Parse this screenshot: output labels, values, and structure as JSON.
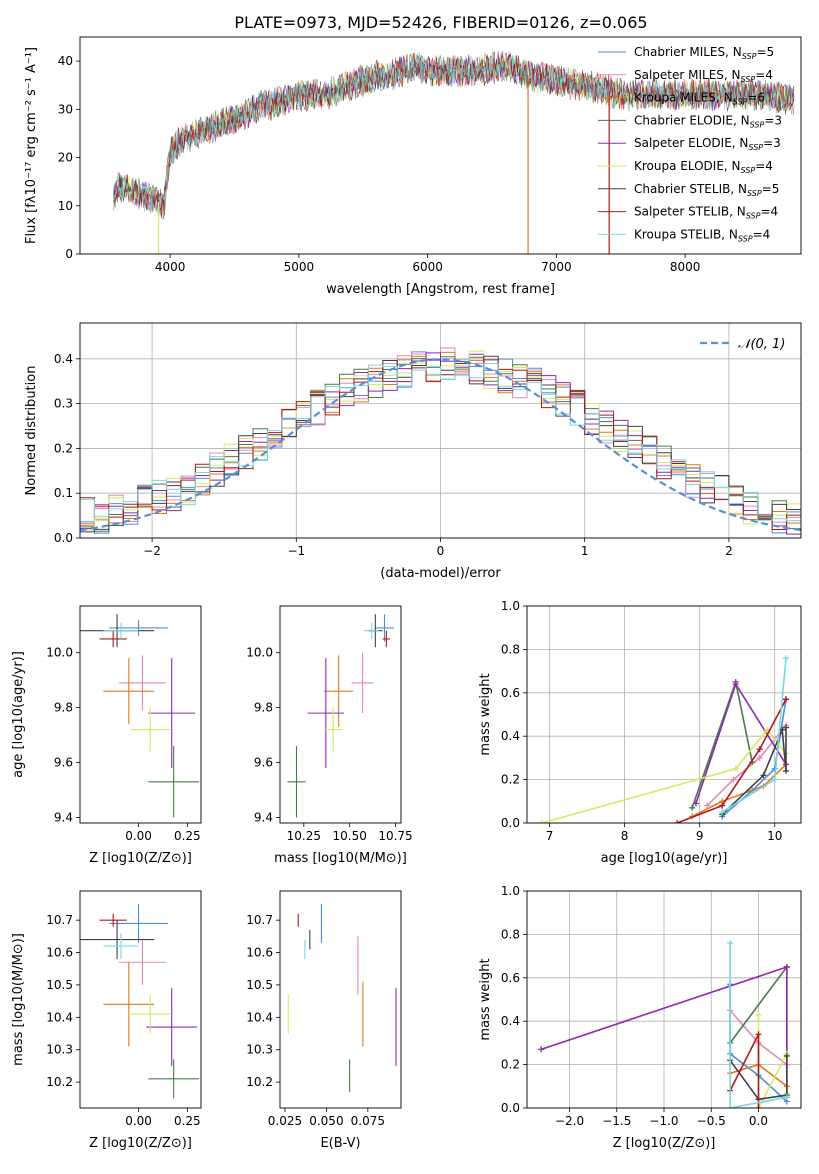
{
  "page_title": "PLATE=0973, MJD=52426, FIBERID=0126, z=0.065",
  "colors": {
    "Chabrier MILES": "#4e8fd8",
    "Salpeter MILES": "#e888b8",
    "Kroupa MILES": "#e07a20",
    "Chabrier ELODIE": "#4a7a4a",
    "Salpeter ELODIE": "#9028b0",
    "Kroupa ELODIE": "#d8e860",
    "Chabrier STELIB": "#404048",
    "Salpeter STELIB": "#b01818",
    "Kroupa STELIB": "#78d8e0",
    "normal_curve": "#5a8fd8"
  },
  "chart_data": [
    {
      "id": "spectrum",
      "type": "line",
      "xlabel": "wavelength [Angstrom, rest frame]",
      "ylabel": "Flux [fλ10⁻¹⁷ erg cm⁻² s⁻¹ A⁻¹]",
      "xlim": [
        3300,
        8900
      ],
      "ylim": [
        0,
        45
      ],
      "xticks": [
        "4000",
        "5000",
        "6000",
        "7000",
        "8000"
      ],
      "yticks": [
        "0",
        "10",
        "20",
        "30",
        "40"
      ],
      "legend_position": "top-right",
      "legend": [
        {
          "label": "Chabrier MILES, N",
          "sub": "SSP",
          "suffix": "=5",
          "color": "#4e8fd8"
        },
        {
          "label": "Salpeter MILES, N",
          "sub": "SSP",
          "suffix": "=4",
          "color": "#e888b8"
        },
        {
          "label": "Kroupa MILES, N",
          "sub": "SSP",
          "suffix": "=6",
          "color": "#e07a20"
        },
        {
          "label": "Chabrier ELODIE, N",
          "sub": "SSP",
          "suffix": "=3",
          "color": "#4a7a4a"
        },
        {
          "label": "Salpeter ELODIE, N",
          "sub": "SSP",
          "suffix": "=3",
          "color": "#9028b0"
        },
        {
          "label": "Kroupa ELODIE, N",
          "sub": "SSP",
          "suffix": "=4",
          "color": "#d8e860"
        },
        {
          "label": "Chabrier STELIB, N",
          "sub": "SSP",
          "suffix": "=5",
          "color": "#404048"
        },
        {
          "label": "Salpeter STELIB, N",
          "sub": "SSP",
          "suffix": "=4",
          "color": "#b01818"
        },
        {
          "label": "Kroupa STELIB, N",
          "sub": "SSP",
          "suffix": "=4",
          "color": "#78d8e0"
        }
      ],
      "continuum": {
        "x": [
          3550,
          3600,
          3700,
          3800,
          3900,
          3950,
          4000,
          4100,
          4200,
          4300,
          4400,
          4500,
          4600,
          4700,
          4800,
          4900,
          5000,
          5100,
          5200,
          5300,
          5400,
          5500,
          5600,
          5700,
          5800,
          5900,
          6000,
          6200,
          6400,
          6600,
          6800,
          7000,
          7200,
          7400,
          7500,
          7600,
          7700,
          7800,
          7900,
          8000,
          8200,
          8400,
          8600,
          8800
        ],
        "y": [
          10,
          14,
          13,
          12,
          11,
          10,
          21,
          24,
          25,
          26,
          27,
          28,
          29,
          31,
          31,
          32,
          33,
          33,
          33,
          34,
          35,
          36,
          37,
          37,
          38,
          39,
          38,
          38,
          38,
          39,
          37,
          36,
          35,
          34,
          33,
          33,
          33,
          33,
          33,
          33,
          33,
          33,
          33,
          32
        ]
      },
      "spikes": [
        {
          "x": 3910,
          "y": 0,
          "color": "#d8e860"
        },
        {
          "x": 6780,
          "y": 0,
          "color": "#e07a20"
        },
        {
          "x": 7410,
          "y": 0,
          "color": "#b01818"
        }
      ]
    },
    {
      "id": "residual_hist",
      "type": "bar",
      "xlabel": "(data-model)/error",
      "ylabel": "Normed distribution",
      "xlim": [
        -2.5,
        2.5
      ],
      "ylim": [
        0,
        0.48
      ],
      "xticks": [
        "−2",
        "−1",
        "0",
        "1",
        "2"
      ],
      "yticks": [
        "0.0",
        "0.1",
        "0.2",
        "0.3",
        "0.4"
      ],
      "grid": true,
      "legend_position": "top-right",
      "normal_label": "𝒩(0, 1)",
      "bin_edges_start": -2.5,
      "bin_width": 0.1,
      "envelope": [
        0.05,
        0.05,
        0.06,
        0.06,
        0.08,
        0.09,
        0.1,
        0.11,
        0.13,
        0.15,
        0.17,
        0.19,
        0.21,
        0.23,
        0.25,
        0.27,
        0.29,
        0.31,
        0.33,
        0.34,
        0.35,
        0.36,
        0.37,
        0.38,
        0.38,
        0.39,
        0.38,
        0.38,
        0.37,
        0.36,
        0.35,
        0.34,
        0.33,
        0.31,
        0.29,
        0.27,
        0.25,
        0.23,
        0.21,
        0.19,
        0.17,
        0.15,
        0.13,
        0.11,
        0.1,
        0.08,
        0.07,
        0.06,
        0.05,
        0.04
      ]
    },
    {
      "id": "age_vs_Z",
      "type": "scatter",
      "xlabel": "Z [log10(Z/Z⊙)]",
      "ylabel": "age [log10(age/yr)]",
      "xlim": [
        -0.3,
        0.32
      ],
      "ylim": [
        9.38,
        10.17
      ],
      "xticks": [
        "0.00",
        "0.25"
      ],
      "yticks": [
        "9.4",
        "9.6",
        "9.8",
        "10.0"
      ],
      "points": [
        {
          "series": "Chabrier MILES",
          "x": 0.0,
          "y": 10.09,
          "xerr": 0.15,
          "yerr": 0.03
        },
        {
          "series": "Salpeter MILES",
          "x": 0.02,
          "y": 9.89,
          "xerr": 0.12,
          "yerr": 0.1
        },
        {
          "series": "Kroupa MILES",
          "x": -0.05,
          "y": 9.86,
          "xerr": 0.13,
          "yerr": 0.12
        },
        {
          "series": "Chabrier ELODIE",
          "x": 0.18,
          "y": 9.53,
          "xerr": 0.13,
          "yerr": 0.13
        },
        {
          "series": "Salpeter ELODIE",
          "x": 0.17,
          "y": 9.78,
          "xerr": 0.12,
          "yerr": 0.2
        },
        {
          "series": "Kroupa ELODIE",
          "x": 0.06,
          "y": 9.72,
          "xerr": 0.1,
          "yerr": 0.08
        },
        {
          "series": "Chabrier STELIB",
          "x": -0.11,
          "y": 10.08,
          "xerr": 0.19,
          "yerr": 0.06
        },
        {
          "series": "Salpeter STELIB",
          "x": -0.13,
          "y": 10.05,
          "xerr": 0.07,
          "yerr": 0.03
        },
        {
          "series": "Kroupa STELIB",
          "x": -0.09,
          "y": 10.08,
          "xerr": 0.09,
          "yerr": 0.03
        }
      ]
    },
    {
      "id": "age_vs_mass",
      "type": "scatter",
      "xlabel": "mass [log10(M/M⊙)]",
      "ylabel": "",
      "xlim": [
        10.12,
        10.78
      ],
      "ylim": [
        9.38,
        10.17
      ],
      "xticks": [
        "10.25",
        "10.50",
        "10.75"
      ],
      "yticks": [
        "9.4",
        "9.6",
        "9.8",
        "10.0"
      ],
      "points": [
        {
          "series": "Chabrier MILES",
          "x": 10.69,
          "y": 10.09,
          "xerr": 0.05,
          "yerr": 0.05
        },
        {
          "series": "Salpeter MILES",
          "x": 10.57,
          "y": 9.89,
          "xerr": 0.06,
          "yerr": 0.11
        },
        {
          "series": "Kroupa MILES",
          "x": 10.44,
          "y": 9.86,
          "xerr": 0.08,
          "yerr": 0.13
        },
        {
          "series": "Chabrier ELODIE",
          "x": 10.21,
          "y": 9.53,
          "xerr": 0.05,
          "yerr": 0.13
        },
        {
          "series": "Salpeter ELODIE",
          "x": 10.37,
          "y": 9.78,
          "xerr": 0.1,
          "yerr": 0.2
        },
        {
          "series": "Kroupa ELODIE",
          "x": 10.41,
          "y": 9.72,
          "xerr": 0.05,
          "yerr": 0.08
        },
        {
          "series": "Chabrier STELIB",
          "x": 10.64,
          "y": 10.08,
          "xerr": 0.04,
          "yerr": 0.06
        },
        {
          "series": "Salpeter STELIB",
          "x": 10.7,
          "y": 10.05,
          "xerr": 0.02,
          "yerr": 0.03
        },
        {
          "series": "Kroupa STELIB",
          "x": 10.62,
          "y": 10.08,
          "xerr": 0.04,
          "yerr": 0.03
        }
      ]
    },
    {
      "id": "weight_vs_age",
      "type": "line",
      "xlabel": "age [log10(age/yr)]",
      "ylabel": "mass weight",
      "xlim": [
        6.7,
        10.35
      ],
      "ylim": [
        0,
        1.0
      ],
      "xticks": [
        "7",
        "8",
        "9",
        "10"
      ],
      "yticks": [
        "0.0",
        "0.2",
        "0.4",
        "0.6",
        "0.8",
        "1.0"
      ],
      "grid": true,
      "series": [
        {
          "name": "Chabrier MILES",
          "x": [
            9.3,
            9.7,
            10.0,
            10.15
          ],
          "y": [
            0.03,
            0.15,
            0.25,
            0.57
          ]
        },
        {
          "name": "Salpeter MILES",
          "x": [
            9.1,
            9.45,
            9.8,
            10.15
          ],
          "y": [
            0.08,
            0.2,
            0.3,
            0.45
          ]
        },
        {
          "name": "Kroupa MILES",
          "x": [
            8.9,
            9.3,
            9.85,
            10.15
          ],
          "y": [
            0.03,
            0.1,
            0.17,
            0.27
          ]
        },
        {
          "name": "Chabrier ELODIE",
          "x": [
            8.9,
            9.48,
            9.7
          ],
          "y": [
            0.07,
            0.65,
            0.28
          ]
        },
        {
          "name": "Salpeter ELODIE",
          "x": [
            8.95,
            9.48,
            10.15
          ],
          "y": [
            0.09,
            0.64,
            0.27
          ]
        },
        {
          "name": "Kroupa ELODIE",
          "x": [
            6.9,
            9.48,
            9.9,
            10.15
          ],
          "y": [
            0.0,
            0.25,
            0.43,
            0.32
          ]
        },
        {
          "name": "Chabrier STELIB",
          "x": [
            9.3,
            9.85,
            10.1,
            10.15,
            10.15
          ],
          "y": [
            0.04,
            0.22,
            0.43,
            0.24,
            0.44
          ]
        },
        {
          "name": "Salpeter STELIB",
          "x": [
            8.7,
            9.3,
            9.8,
            10.15
          ],
          "y": [
            0.0,
            0.08,
            0.34,
            0.57
          ]
        },
        {
          "name": "Kroupa STELIB",
          "x": [
            9.3,
            10.0,
            10.15
          ],
          "y": [
            0.05,
            0.2,
            0.76
          ]
        }
      ]
    },
    {
      "id": "mass_vs_Z",
      "type": "scatter",
      "xlabel": "Z [log10(Z/Z⊙)]",
      "ylabel": "mass [log10(M/M⊙)]",
      "xlim": [
        -0.3,
        0.32
      ],
      "ylim": [
        10.12,
        10.79
      ],
      "xticks": [
        "0.00",
        "0.25"
      ],
      "yticks": [
        "10.2",
        "10.3",
        "10.4",
        "10.5",
        "10.6",
        "10.7"
      ],
      "points": [
        {
          "series": "Chabrier MILES",
          "x": 0.0,
          "y": 10.69,
          "xerr": 0.15,
          "yerr": 0.06
        },
        {
          "series": "Salpeter MILES",
          "x": 0.02,
          "y": 10.57,
          "xerr": 0.12,
          "yerr": 0.07
        },
        {
          "series": "Kroupa MILES",
          "x": -0.05,
          "y": 10.44,
          "xerr": 0.13,
          "yerr": 0.13
        },
        {
          "series": "Chabrier ELODIE",
          "x": 0.18,
          "y": 10.21,
          "xerr": 0.13,
          "yerr": 0.06
        },
        {
          "series": "Salpeter ELODIE",
          "x": 0.17,
          "y": 10.37,
          "xerr": 0.13,
          "yerr": 0.12
        },
        {
          "series": "Kroupa ELODIE",
          "x": 0.06,
          "y": 10.41,
          "xerr": 0.1,
          "yerr": 0.06
        },
        {
          "series": "Chabrier STELIB",
          "x": -0.11,
          "y": 10.64,
          "xerr": 0.19,
          "yerr": 0.06
        },
        {
          "series": "Salpeter STELIB",
          "x": -0.13,
          "y": 10.7,
          "xerr": 0.07,
          "yerr": 0.02
        },
        {
          "series": "Kroupa STELIB",
          "x": -0.09,
          "y": 10.62,
          "xerr": 0.09,
          "yerr": 0.04
        }
      ]
    },
    {
      "id": "mass_vs_ebv",
      "type": "scatter",
      "xlabel": "E(B-V)",
      "ylabel": "",
      "xlim": [
        0.022,
        0.095
      ],
      "ylim": [
        10.12,
        10.79
      ],
      "xticks": [
        "0.025",
        "0.050",
        "0.075"
      ],
      "yticks": [
        "10.2",
        "10.3",
        "10.4",
        "10.5",
        "10.6",
        "10.7"
      ],
      "points": [
        {
          "series": "Chabrier MILES",
          "x": 0.047,
          "y": 10.69,
          "xerr": 0,
          "yerr": 0.06
        },
        {
          "series": "Salpeter MILES",
          "x": 0.069,
          "y": 10.56,
          "xerr": 0,
          "yerr": 0.09
        },
        {
          "series": "Kroupa MILES",
          "x": 0.072,
          "y": 10.41,
          "xerr": 0,
          "yerr": 0.1
        },
        {
          "series": "Chabrier ELODIE",
          "x": 0.064,
          "y": 10.22,
          "xerr": 0,
          "yerr": 0.05
        },
        {
          "series": "Salpeter ELODIE",
          "x": 0.092,
          "y": 10.37,
          "xerr": 0,
          "yerr": 0.12
        },
        {
          "series": "Kroupa ELODIE",
          "x": 0.027,
          "y": 10.41,
          "xerr": 0,
          "yerr": 0.06
        },
        {
          "series": "Chabrier STELIB",
          "x": 0.04,
          "y": 10.64,
          "xerr": 0,
          "yerr": 0.03
        },
        {
          "series": "Salpeter STELIB",
          "x": 0.033,
          "y": 10.7,
          "xerr": 0,
          "yerr": 0.02
        },
        {
          "series": "Kroupa STELIB",
          "x": 0.037,
          "y": 10.61,
          "xerr": 0,
          "yerr": 0.03
        }
      ]
    },
    {
      "id": "weight_vs_Z",
      "type": "line",
      "xlabel": "Z [log10(Z/Z⊙)]",
      "ylabel": "mass weight",
      "xlim": [
        -2.45,
        0.45
      ],
      "ylim": [
        0,
        1.0
      ],
      "xticks": [
        "−2.0",
        "−1.5",
        "−1.0",
        "−0.5",
        "0.0"
      ],
      "yticks": [
        "0.0",
        "0.2",
        "0.4",
        "0.6",
        "0.8",
        "1.0"
      ],
      "grid": true,
      "series": [
        {
          "name": "Chabrier MILES",
          "x": [
            -0.3,
            -0.3,
            0.0,
            0.3
          ],
          "y": [
            0.57,
            0.25,
            0.15,
            0.03
          ]
        },
        {
          "name": "Salpeter MILES",
          "x": [
            -0.3,
            0.0,
            0.3
          ],
          "y": [
            0.45,
            0.3,
            0.2
          ]
        },
        {
          "name": "Kroupa MILES",
          "x": [
            -0.3,
            0.0,
            0.3
          ],
          "y": [
            0.16,
            0.2,
            0.1
          ]
        },
        {
          "name": "Chabrier ELODIE",
          "x": [
            -0.3,
            0.3,
            0.3
          ],
          "y": [
            0.3,
            0.65,
            0.05
          ]
        },
        {
          "name": "Salpeter ELODIE",
          "x": [
            -2.3,
            0.3,
            0.3
          ],
          "y": [
            0.27,
            0.65,
            0.05
          ]
        },
        {
          "name": "Kroupa ELODIE",
          "x": [
            0.0,
            0.0,
            0.3,
            0.3
          ],
          "y": [
            0.43,
            0.0,
            0.25,
            0.07
          ]
        },
        {
          "name": "Chabrier STELIB",
          "x": [
            -0.3,
            0.0,
            0.3,
            0.3
          ],
          "y": [
            0.22,
            0.04,
            0.06,
            0.24
          ]
        },
        {
          "name": "Salpeter STELIB",
          "x": [
            -0.3,
            0.0,
            0.0
          ],
          "y": [
            0.08,
            0.34,
            0.0
          ]
        },
        {
          "name": "Kroupa STELIB",
          "x": [
            -0.3,
            -0.3,
            0.3
          ],
          "y": [
            0.76,
            0.0,
            0.05
          ]
        }
      ]
    }
  ]
}
